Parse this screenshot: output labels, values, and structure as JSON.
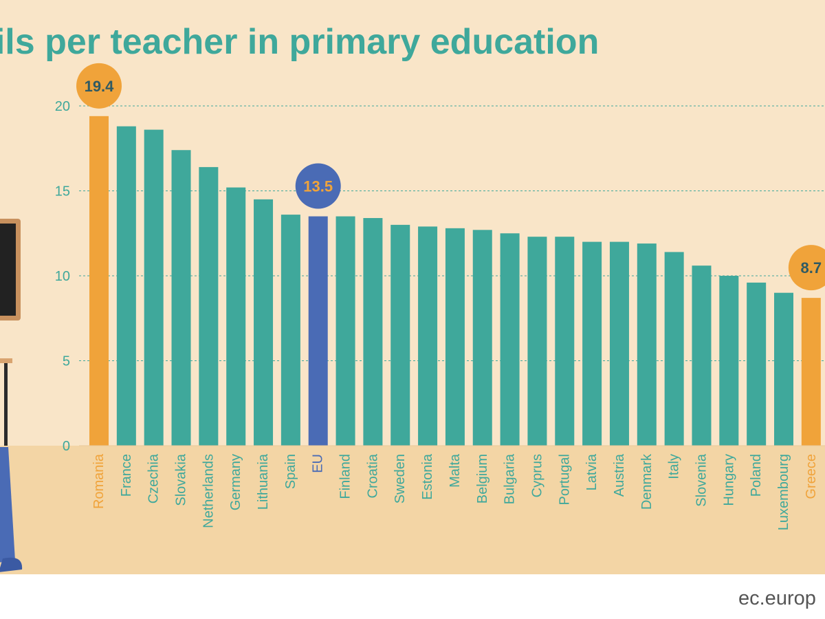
{
  "title": "of pupils per teacher in primary education",
  "source": "ec.europ",
  "colors": {
    "background": "#f9e5c8",
    "floor": "#f3d5a5",
    "bar": "#3fa89b",
    "highlight": "#f0a33a",
    "eu": "#4a6bb5",
    "title": "#3fa89b",
    "callout_text_dark": "#2f5a63",
    "callout_text_light": "#f0a33a",
    "gridline": "#3fa89b"
  },
  "illustration": {
    "left_edge": "teacher-with-chalkboard-illustration"
  },
  "chart_data": {
    "type": "bar",
    "title": "of pupils per teacher in primary education",
    "ylim": [
      0,
      20
    ],
    "yticks": [
      0,
      5,
      10,
      15,
      20
    ],
    "grid": true,
    "categories": [
      "Romania",
      "France",
      "Czechia",
      "Slovakia",
      "Netherlands",
      "Germany",
      "Lithuania",
      "Spain",
      "EU",
      "Finland",
      "Croatia",
      "Sweden",
      "Estonia",
      "Malta",
      "Belgium",
      "Bulgaria",
      "Cyprus",
      "Portugal",
      "Latvia",
      "Austria",
      "Denmark",
      "Italy",
      "Slovenia",
      "Hungary",
      "Poland",
      "Luxembourg",
      "Greece"
    ],
    "values": [
      19.4,
      18.8,
      18.6,
      17.4,
      16.4,
      15.2,
      14.5,
      13.6,
      13.5,
      13.5,
      13.4,
      13.0,
      12.9,
      12.8,
      12.7,
      12.5,
      12.3,
      12.3,
      12.0,
      12.0,
      11.9,
      11.4,
      10.6,
      10.0,
      9.6,
      9.0,
      8.7
    ],
    "highlight": {
      "max": "Romania",
      "eu": "EU",
      "min": "Greece"
    },
    "callouts": [
      {
        "category": "Romania",
        "label": "19.4"
      },
      {
        "category": "EU",
        "label": "13.5"
      },
      {
        "category": "Greece",
        "label": "8.7"
      }
    ]
  }
}
